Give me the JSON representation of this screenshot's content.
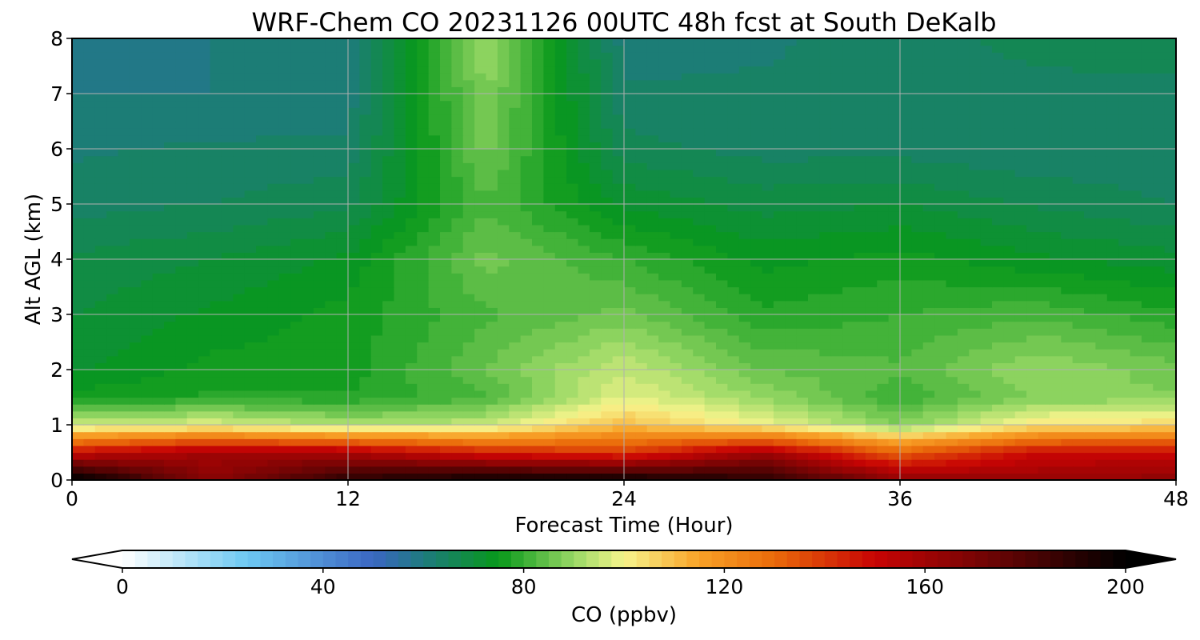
{
  "chart_data": {
    "type": "heatmap",
    "title": "WRF-Chem CO  20231126 00UTC 48h fcst at South DeKalb",
    "xlabel": "Forecast Time (Hour)",
    "ylabel": "Alt AGL (km)",
    "xlim": [
      0,
      48
    ],
    "ylim": [
      0,
      8
    ],
    "xticks": [
      "0",
      "12",
      "24",
      "36",
      "48"
    ],
    "yticks": [
      "0",
      "1",
      "2",
      "3",
      "4",
      "5",
      "6",
      "7",
      "8"
    ],
    "grid": true,
    "x": [
      0,
      6,
      12,
      18,
      24,
      30,
      36,
      42,
      48
    ],
    "y": [
      0,
      0.5,
      1,
      1.5,
      2,
      3,
      4,
      5,
      6,
      7,
      8
    ],
    "z": [
      [
        205,
        165,
        190,
        198,
        198,
        190,
        165,
        162,
        165
      ],
      [
        150,
        160,
        158,
        145,
        140,
        160,
        132,
        150,
        150
      ],
      [
        95,
        98,
        92,
        95,
        110,
        100,
        88,
        103,
        105
      ],
      [
        76,
        78,
        78,
        82,
        98,
        90,
        80,
        88,
        88
      ],
      [
        72,
        76,
        76,
        85,
        95,
        85,
        83,
        90,
        86
      ],
      [
        70,
        73,
        76,
        82,
        86,
        78,
        80,
        82,
        78
      ],
      [
        68,
        70,
        73,
        86,
        80,
        74,
        76,
        73,
        71
      ],
      [
        64,
        65,
        67,
        82,
        72,
        69,
        70,
        67,
        65
      ],
      [
        62,
        63,
        63,
        86,
        66,
        64,
        64,
        63,
        63
      ],
      [
        60,
        60,
        61,
        88,
        63,
        63,
        63,
        64,
        64
      ],
      [
        59,
        60,
        60,
        90,
        61,
        62,
        64,
        66,
        67
      ]
    ],
    "colorbar": {
      "label": "CO  (ppbv)",
      "min": 0,
      "max": 200,
      "ticks": [
        "0",
        "40",
        "80",
        "120",
        "160",
        "200"
      ],
      "extend": "both",
      "colors": [
        {
          "v": 0,
          "c": "#ffffff"
        },
        {
          "v": 25,
          "c": "#6cc8f2"
        },
        {
          "v": 50,
          "c": "#3a66c2"
        },
        {
          "v": 60,
          "c": "#1e7a7e"
        },
        {
          "v": 75,
          "c": "#07981a"
        },
        {
          "v": 90,
          "c": "#98d865"
        },
        {
          "v": 100,
          "c": "#f7f48c"
        },
        {
          "v": 115,
          "c": "#f8a227"
        },
        {
          "v": 130,
          "c": "#ea6a0a"
        },
        {
          "v": 150,
          "c": "#c80404"
        },
        {
          "v": 175,
          "c": "#650404"
        },
        {
          "v": 200,
          "c": "#000000"
        }
      ]
    }
  }
}
